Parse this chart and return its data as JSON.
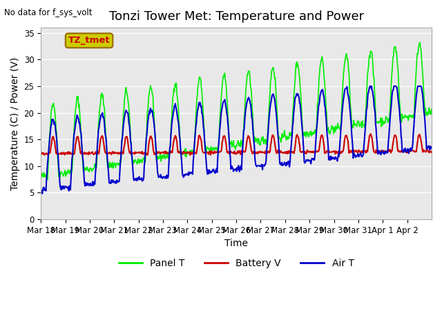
{
  "title": "Tonzi Tower Met: Temperature and Power",
  "top_left_text": "No data for f_sys_volt",
  "xlabel": "Time",
  "ylabel": "Temperature (C) / Power (V)",
  "ylim": [
    0,
    36
  ],
  "yticks": [
    0,
    5,
    10,
    15,
    20,
    25,
    30,
    35
  ],
  "x_tick_labels": [
    "Mar 18",
    "Mar 19",
    "Mar 20",
    "Mar 21",
    "Mar 22",
    "Mar 23",
    "Mar 24",
    "Mar 25",
    "Mar 26",
    "Mar 27",
    "Mar 28",
    "Mar 29",
    "Mar 30",
    "Mar 31",
    "Apr 1",
    "Apr 2"
  ],
  "annotation_box_text": "TZ_tmet",
  "annotation_box_color": "#cccc00",
  "annotation_text_color": "#cc0000",
  "legend_entries": [
    "Panel T",
    "Battery V",
    "Air T"
  ],
  "legend_colors": [
    "#00ee00",
    "#cc0000",
    "#0000cc"
  ],
  "panel_t_color": "#00ee00",
  "battery_v_color": "#cc0000",
  "air_t_color": "#0000cc",
  "background_color": "#ffffff",
  "plot_bg_color": "#e8e8e8",
  "grid_color": "#ffffff",
  "title_fontsize": 13,
  "axis_label_fontsize": 10,
  "tick_fontsize": 8.5
}
